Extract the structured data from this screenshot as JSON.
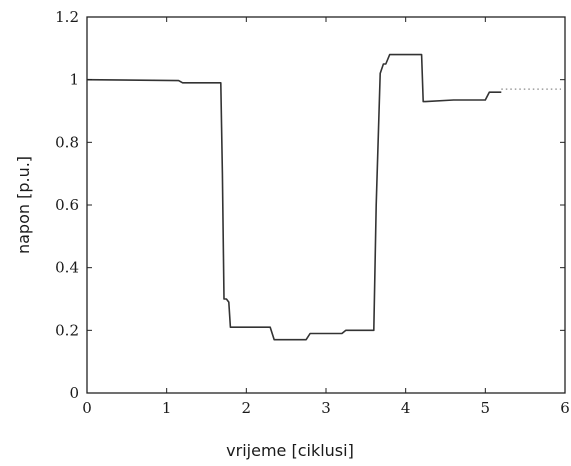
{
  "chart_data": {
    "type": "line",
    "title": "",
    "xlabel": "vrijeme [ciklusi]",
    "ylabel": "napon [p.u.]",
    "xlim": [
      0,
      6
    ],
    "ylim": [
      0,
      1.2
    ],
    "xticks": [
      "0",
      "1",
      "2",
      "3",
      "4",
      "5",
      "6"
    ],
    "yticks": [
      "0",
      "0.2",
      "0.4",
      "0.6",
      "0.8",
      "1",
      "1.2"
    ],
    "grid": false,
    "line_color": "#333333",
    "series": [
      {
        "x": [
          0,
          1.15,
          1.2,
          1.68,
          1.7,
          1.72,
          1.75,
          1.78,
          1.8,
          2.3,
          2.35,
          2.75,
          2.8,
          3.2,
          3.25,
          3.6,
          3.63,
          3.68,
          3.72,
          3.75,
          3.8,
          4.2,
          4.22,
          4.25,
          4.6,
          5.0,
          5.05,
          5.2
        ],
        "y": [
          1.0,
          0.997,
          0.99,
          0.99,
          0.7,
          0.3,
          0.3,
          0.29,
          0.21,
          0.21,
          0.17,
          0.17,
          0.19,
          0.19,
          0.2,
          0.2,
          0.6,
          1.02,
          1.05,
          1.05,
          1.08,
          1.08,
          0.93,
          0.93,
          0.935,
          0.935,
          0.96,
          0.96
        ],
        "style": "solid"
      },
      {
        "x": [
          5.2,
          5.95
        ],
        "y": [
          0.97,
          0.97
        ],
        "style": "dotted"
      }
    ]
  }
}
